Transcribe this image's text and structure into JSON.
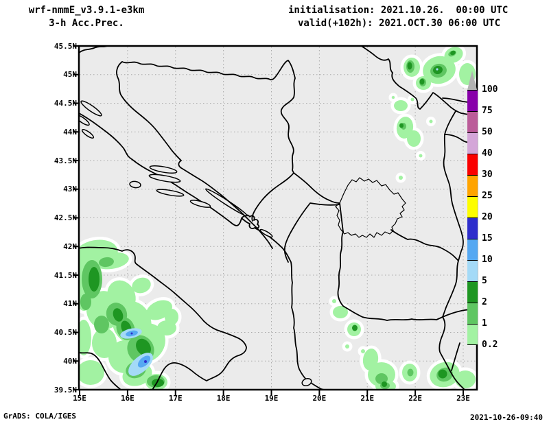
{
  "header": {
    "model_line": "wrf-nmmE_v3.9.1-e3km",
    "product_line": "3-h Acc.Prec.",
    "init_line": "initialisation: 2021.10.26.  00:00 UTC",
    "valid_line": "valid(+102h): 2021.OCT.30 06:00 UTC"
  },
  "map": {
    "background_color": "#ebebeb",
    "gridline_color": "#aaaaaa",
    "outline_color": "#000000",
    "y_axis_labels": [
      "45.5N",
      "45N",
      "44.5N",
      "44N",
      "43.5N",
      "43N",
      "42.5N",
      "42N",
      "41.5N",
      "41N",
      "40.5N",
      "40N",
      "39.5N"
    ],
    "x_axis_labels": [
      "15E",
      "16E",
      "17E",
      "18E",
      "19E",
      "20E",
      "21E",
      "22E",
      "23E"
    ]
  },
  "colorbar": {
    "boundary_labels": [
      "100",
      "75",
      "50",
      "40",
      "30",
      "25",
      "20",
      "15",
      "10",
      "5",
      "2",
      "1",
      "0.2"
    ],
    "overflow_color": "#b2b2b2",
    "segment_colors_top_to_bottom": [
      "#8800aa",
      "#bb5c99",
      "#d4a6d8",
      "#fa0000",
      "#ffa400",
      "#fdfd00",
      "#2e2ecc",
      "#55a8f2",
      "#a4daf7",
      "#1e9622",
      "#5fc662",
      "#a2f2a2"
    ]
  },
  "precip_palette": {
    "halo_white": "#ffffff",
    "light_green": "#a2f2a2",
    "medium_green": "#5fc662",
    "dark_green": "#1e9622",
    "light_blue": "#a4daf7",
    "medium_blue": "#55a8f2",
    "dark_blue": "#2e2ecc"
  },
  "footer": {
    "credit": "GrADS: COLA/IGES",
    "timestamp": "2021-10-26-09:40"
  }
}
